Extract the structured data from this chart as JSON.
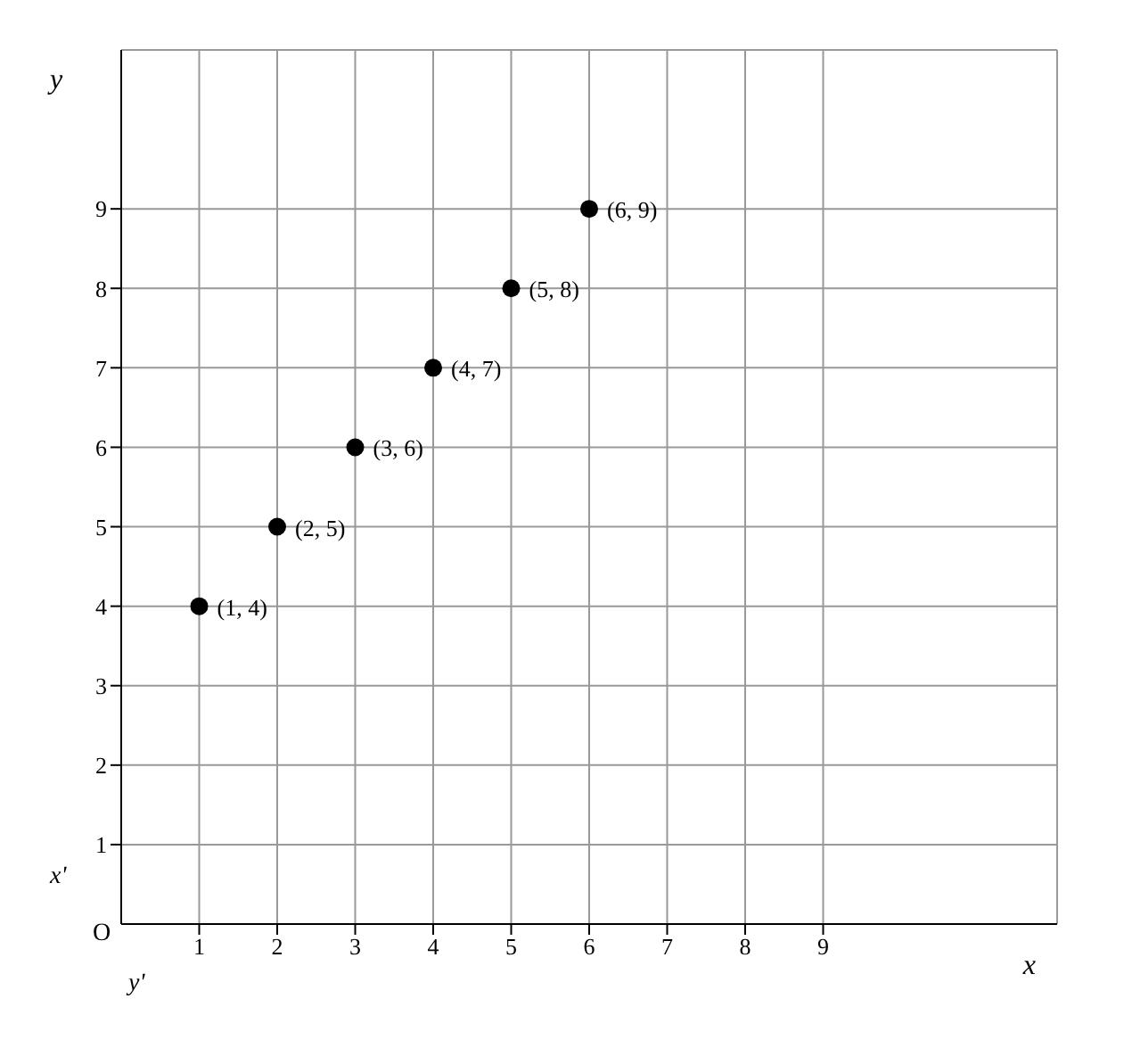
{
  "chart_data": {
    "type": "scatter",
    "xlabel": "x",
    "ylabel": "y",
    "x": [
      1,
      2,
      3,
      4,
      5,
      6
    ],
    "values": [
      4,
      5,
      6,
      7,
      8,
      9
    ],
    "color": "#000000",
    "marker": "circle",
    "xlim": [
      0,
      12
    ],
    "ylim": [
      0,
      11
    ],
    "xticks": [
      1,
      2,
      3,
      4,
      5,
      6,
      7,
      8,
      9
    ],
    "yticks": [
      1,
      2,
      3,
      4,
      5,
      6,
      7,
      8,
      9
    ],
    "grid": true,
    "annotations": [
      {
        "text": "(1, 4)",
        "x": 1,
        "y": 4
      },
      {
        "text": "(2, 5)",
        "x": 2,
        "y": 5
      },
      {
        "text": "(3, 6)",
        "x": 3,
        "y": 6
      },
      {
        "text": "(4, 7)",
        "x": 4,
        "y": 7
      },
      {
        "text": "(5, 8)",
        "x": 5,
        "y": 8
      },
      {
        "text": "(6, 9)",
        "x": 6,
        "y": 9
      },
      "O",
      "x'",
      "y'"
    ]
  }
}
